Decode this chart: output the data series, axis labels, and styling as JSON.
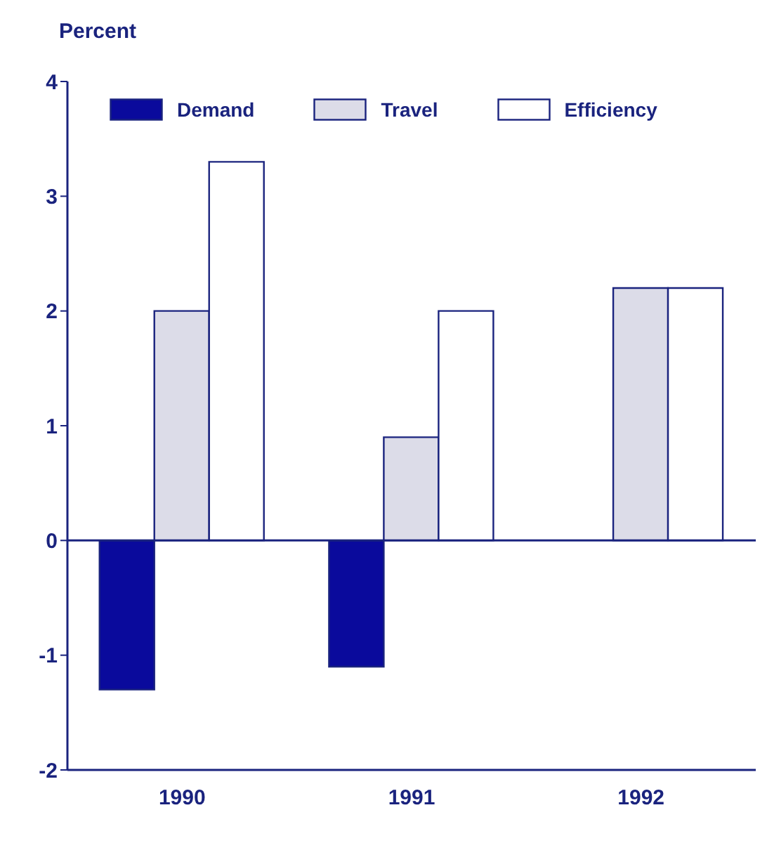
{
  "chart_data": {
    "type": "bar",
    "ylabel": "Percent",
    "categories": [
      "1990",
      "1991",
      "1992"
    ],
    "series": [
      {
        "name": "Demand",
        "color": "#0a0a9c",
        "values": [
          -1.3,
          -1.1,
          0
        ]
      },
      {
        "name": "Travel",
        "color": "#dcdce8",
        "values": [
          2.0,
          0.9,
          2.2
        ]
      },
      {
        "name": "Efficiency",
        "color": "#ffffff",
        "values": [
          3.3,
          2.0,
          2.2
        ]
      }
    ],
    "ylim": [
      -2,
      4
    ],
    "yticks": [
      -2,
      -1,
      0,
      1,
      2,
      3,
      4
    ],
    "ref_lines": [
      {
        "axis": "y",
        "value": 0
      }
    ],
    "legend": "top left"
  }
}
